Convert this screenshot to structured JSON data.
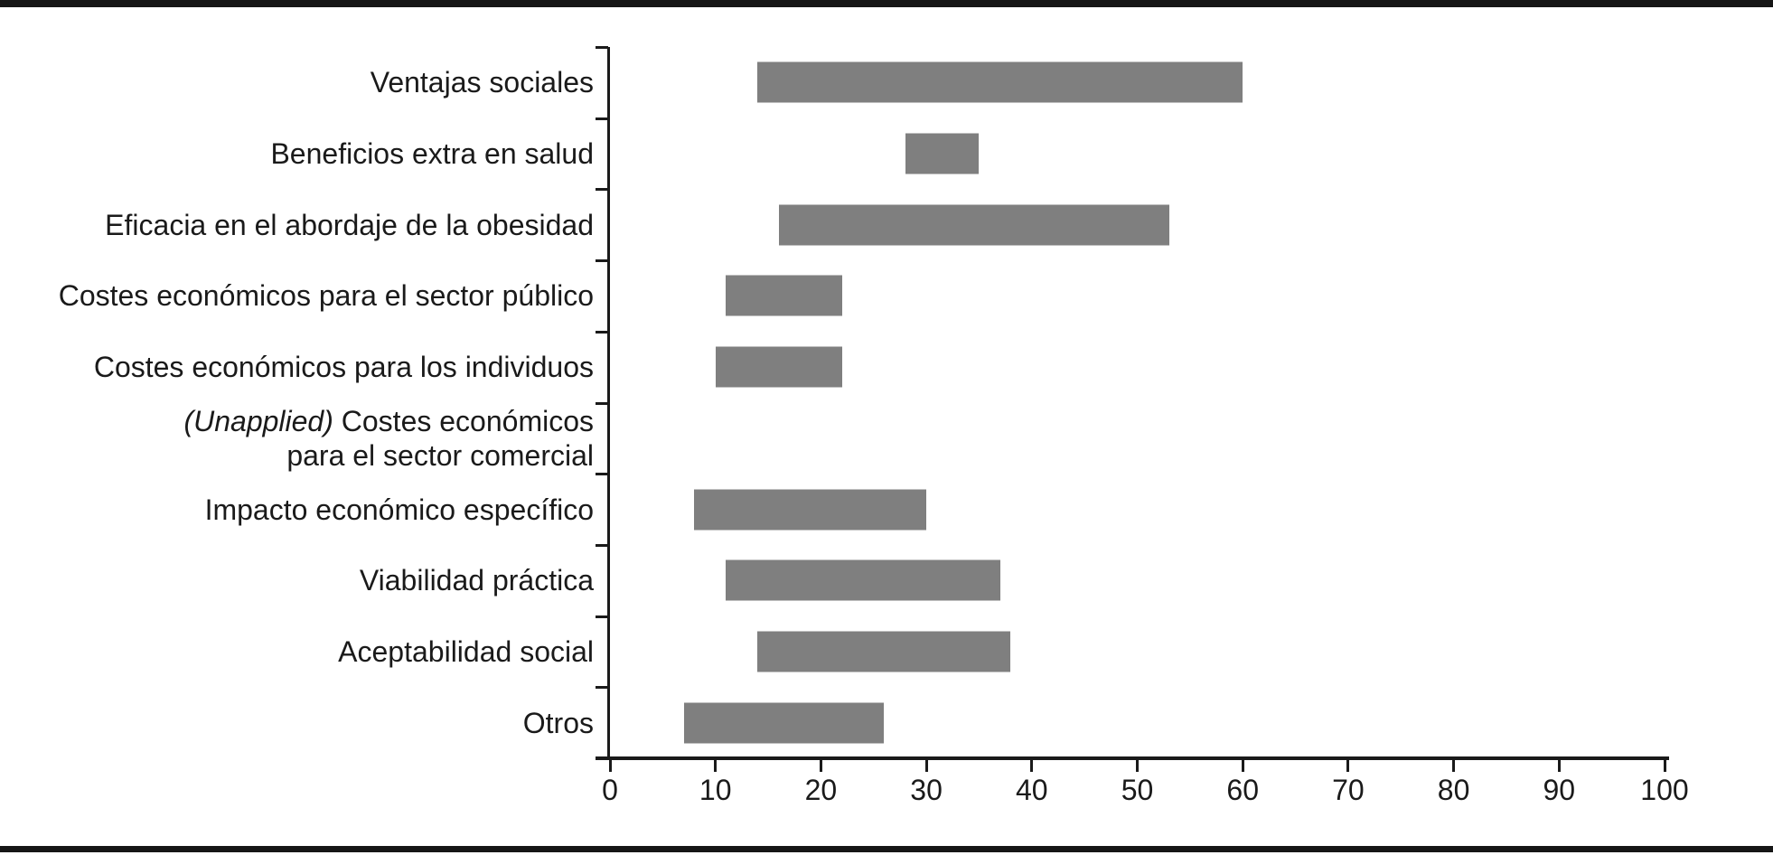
{
  "chart_data": {
    "type": "bar",
    "orientation": "horizontal",
    "bar_style": "range",
    "title": "",
    "xlabel": "",
    "ylabel": "",
    "xlim": [
      0,
      100
    ],
    "x_ticks": [
      0,
      10,
      20,
      30,
      40,
      50,
      60,
      70,
      80,
      90,
      100
    ],
    "grid": false,
    "legend_position": "none",
    "bar_color": "#7f7f7f",
    "axis_color": "#1a1a1a",
    "frame_rule_color": "#161616",
    "categories": [
      {
        "label_prefix": "",
        "label": "Ventajas sociales",
        "label_line2": "",
        "start": 14,
        "end": 60
      },
      {
        "label_prefix": "",
        "label": "Beneficios extra en salud",
        "label_line2": "",
        "start": 28,
        "end": 35
      },
      {
        "label_prefix": "",
        "label": "Eficacia en el abordaje de la obesidad",
        "label_line2": "",
        "start": 16,
        "end": 53
      },
      {
        "label_prefix": "",
        "label": "Costes económicos para el sector público",
        "label_line2": "",
        "start": 11,
        "end": 22
      },
      {
        "label_prefix": "",
        "label": "Costes económicos para los individuos",
        "label_line2": "",
        "start": 10,
        "end": 22
      },
      {
        "label_prefix": "(Unapplied)",
        "label": " Costes económicos",
        "label_line2": "para el sector comercial",
        "start": null,
        "end": null
      },
      {
        "label_prefix": "",
        "label": "Impacto económico específico",
        "label_line2": "",
        "start": 8,
        "end": 30
      },
      {
        "label_prefix": "",
        "label": "Viabilidad práctica",
        "label_line2": "",
        "start": 11,
        "end": 37
      },
      {
        "label_prefix": "",
        "label": "Aceptabilidad social",
        "label_line2": "",
        "start": 14,
        "end": 38
      },
      {
        "label_prefix": "",
        "label": "Otros",
        "label_line2": "",
        "start": 7,
        "end": 26
      }
    ]
  }
}
